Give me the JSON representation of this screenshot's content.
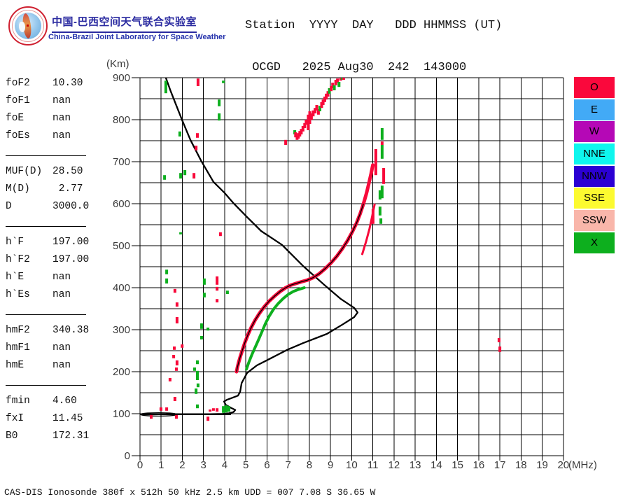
{
  "branding": {
    "title_zh": "中国-巴西空间天气联合实验室",
    "title_en": "China-Brazil Joint Laboratory for Space Weather",
    "accent_color": "#2a2aa0",
    "logo": "china-brazil-space-weather-globe-logo"
  },
  "header": {
    "line1": "Station  YYYY  DAY   DDD HHMMSS (UT)",
    "line2": " OCGD   2025 Aug30  242  143000"
  },
  "parameters": {
    "groups": [
      {
        "rows": [
          {
            "label": "foF2",
            "value": "10.30"
          },
          {
            "label": "foF1",
            "value": "nan"
          },
          {
            "label": "foE",
            "value": "nan"
          },
          {
            "label": "foEs",
            "value": "nan"
          }
        ]
      },
      {
        "rows": [
          {
            "label": "MUF(D)",
            "value": "28.50"
          },
          {
            "label": "M(D)",
            "value": " 2.77"
          },
          {
            "label": "D",
            "value": "3000.0"
          }
        ]
      },
      {
        "rows": [
          {
            "label": "h`F",
            "value": "197.00"
          },
          {
            "label": "h`F2",
            "value": "197.00"
          },
          {
            "label": "h`E",
            "value": "nan"
          },
          {
            "label": "h`Es",
            "value": "nan"
          }
        ]
      },
      {
        "rows": [
          {
            "label": "hmF2",
            "value": "340.38"
          },
          {
            "label": "hmF1",
            "value": "nan"
          },
          {
            "label": "hmE",
            "value": "nan"
          }
        ]
      },
      {
        "rows": [
          {
            "label": "fmin",
            "value": "4.60"
          },
          {
            "label": "fxI",
            "value": "11.45"
          },
          {
            "label": "B0",
            "value": "172.31"
          }
        ]
      }
    ]
  },
  "legend": {
    "items": [
      {
        "label": "O",
        "color": "#fa083c"
      },
      {
        "label": "E",
        "color": "#42aaf6"
      },
      {
        "label": "W",
        "color": "#b508b6"
      },
      {
        "label": "NNE",
        "color": "#0ff6ee"
      },
      {
        "label": "NNW",
        "color": "#2b00d3"
      },
      {
        "label": "SSE",
        "color": "#fcfa30"
      },
      {
        "label": "SSW",
        "color": "#f9b6aa"
      },
      {
        "label": "X",
        "color": "#0daf1e"
      }
    ]
  },
  "footer": {
    "caption": "CAS-DIS Ionosonde 380f x 512h 50 kHz 2.5 km UDD = 007 7.08 S 36.65 W"
  },
  "chart_data": {
    "type": "scatter",
    "title": "Ionogram",
    "xlabel": "(MHz)",
    "ylabel": "(Km)",
    "xlim": [
      0,
      20
    ],
    "ylim": [
      0,
      900
    ],
    "x_tick_step": 1,
    "y_label_step": 100,
    "y_grid_step": 50,
    "grid": true,
    "legend_position": "right",
    "colors": {
      "o_mode": "#f8093a",
      "x_mode": "#0daf1e",
      "profile": "#000000",
      "grid": "#000000",
      "tick_text": "#3a3a3a"
    },
    "o_trace": [
      [
        4.56,
        200
      ],
      [
        4.6,
        210
      ],
      [
        4.66,
        222
      ],
      [
        4.74,
        236
      ],
      [
        4.84,
        252
      ],
      [
        4.96,
        270
      ],
      [
        5.1,
        288
      ],
      [
        5.26,
        306
      ],
      [
        5.44,
        323
      ],
      [
        5.64,
        339
      ],
      [
        5.86,
        354
      ],
      [
        6.1,
        368
      ],
      [
        6.36,
        380
      ],
      [
        6.62,
        391
      ],
      [
        6.88,
        400
      ],
      [
        7.12,
        406
      ],
      [
        7.36,
        410
      ],
      [
        7.62,
        414
      ],
      [
        7.9,
        418
      ],
      [
        8.18,
        424
      ],
      [
        8.46,
        433
      ],
      [
        8.74,
        445
      ],
      [
        9.02,
        459
      ],
      [
        9.3,
        475
      ],
      [
        9.56,
        493
      ],
      [
        9.8,
        512
      ],
      [
        10.02,
        532
      ],
      [
        10.22,
        553
      ],
      [
        10.4,
        576
      ],
      [
        10.56,
        600
      ],
      [
        10.7,
        625
      ],
      [
        10.82,
        650
      ],
      [
        10.92,
        672
      ],
      [
        11.0,
        692
      ]
    ],
    "x_trace": [
      [
        5.03,
        206
      ],
      [
        5.14,
        222
      ],
      [
        5.28,
        240
      ],
      [
        5.44,
        258
      ],
      [
        5.6,
        276
      ],
      [
        5.76,
        295
      ],
      [
        5.92,
        314
      ],
      [
        6.1,
        332
      ],
      [
        6.3,
        348
      ],
      [
        6.52,
        362
      ],
      [
        6.76,
        374
      ],
      [
        7.0,
        384
      ],
      [
        7.24,
        391
      ],
      [
        7.5,
        396
      ],
      [
        7.76,
        400
      ]
    ],
    "o_branch2": [
      [
        10.5,
        480
      ],
      [
        10.68,
        510
      ],
      [
        10.84,
        540
      ],
      [
        10.97,
        570
      ],
      [
        11.08,
        598
      ]
    ],
    "profile": [
      [
        1.22,
        900
      ],
      [
        1.45,
        868
      ],
      [
        1.7,
        836
      ],
      [
        1.98,
        800
      ],
      [
        2.38,
        752
      ],
      [
        2.89,
        702
      ],
      [
        3.47,
        652
      ],
      [
        3.97,
        627
      ],
      [
        4.4,
        602
      ],
      [
        5.06,
        568
      ],
      [
        5.72,
        535
      ],
      [
        6.71,
        502
      ],
      [
        7.7,
        452
      ],
      [
        8.7,
        407
      ],
      [
        9.49,
        373
      ],
      [
        10.12,
        352
      ],
      [
        10.28,
        341
      ],
      [
        10.12,
        330
      ],
      [
        9.59,
        313
      ],
      [
        8.83,
        290
      ],
      [
        7.7,
        268
      ],
      [
        6.95,
        252
      ],
      [
        6.18,
        232
      ],
      [
        5.52,
        215
      ],
      [
        5.06,
        197
      ],
      [
        4.8,
        173
      ],
      [
        4.73,
        152
      ],
      [
        4.63,
        143
      ],
      [
        4.37,
        138
      ],
      [
        4.1,
        133
      ],
      [
        3.97,
        129
      ],
      [
        4.05,
        121
      ],
      [
        4.3,
        114
      ],
      [
        4.5,
        109
      ],
      [
        4.42,
        104
      ],
      [
        4.2,
        101
      ],
      [
        3.9,
        99.5
      ],
      [
        3.3,
        99
      ],
      [
        2.5,
        98.7
      ],
      [
        1.5,
        98.5
      ],
      [
        0.5,
        98.4
      ],
      [
        0.05,
        98.3
      ]
    ],
    "profile_baseline": {
      "km": 98.3,
      "f_start": 0.0,
      "f_end": 1.75,
      "lens": true
    },
    "scatter_segments": [
      [
        1.22,
        863,
        893,
        "x"
      ],
      [
        2.74,
        880,
        898,
        "o"
      ],
      [
        3.94,
        887,
        893,
        "x"
      ],
      [
        3.74,
        832,
        848,
        "x"
      ],
      [
        3.74,
        798,
        815,
        "x"
      ],
      [
        1.88,
        760,
        772,
        "x"
      ],
      [
        2.71,
        757,
        768,
        "o"
      ],
      [
        2.65,
        727,
        738,
        "o"
      ],
      [
        6.88,
        740,
        752,
        "o"
      ],
      [
        1.16,
        657,
        668,
        "x"
      ],
      [
        1.92,
        660,
        673,
        "x"
      ],
      [
        2.12,
        668,
        680,
        "x"
      ],
      [
        2.55,
        660,
        673,
        "o"
      ],
      [
        1.92,
        527,
        532,
        "x"
      ],
      [
        3.8,
        523,
        532,
        "o"
      ],
      [
        1.26,
        432,
        443,
        "x"
      ],
      [
        1.26,
        410,
        422,
        "x"
      ],
      [
        1.65,
        388,
        397,
        "o"
      ],
      [
        3.04,
        407,
        422,
        "x"
      ],
      [
        3.04,
        377,
        388,
        "x"
      ],
      [
        3.64,
        407,
        427,
        "o"
      ],
      [
        3.64,
        393,
        402,
        "o"
      ],
      [
        3.64,
        365,
        373,
        "o"
      ],
      [
        4.13,
        385,
        393,
        "x"
      ],
      [
        1.75,
        355,
        365,
        "o"
      ],
      [
        1.75,
        315,
        330,
        "o"
      ],
      [
        2.91,
        302,
        315,
        "x"
      ],
      [
        3.21,
        298,
        305,
        "x"
      ],
      [
        2.91,
        277,
        285,
        "x"
      ],
      [
        1.62,
        252,
        260,
        "o"
      ],
      [
        1.99,
        257,
        265,
        "o"
      ],
      [
        1.59,
        232,
        240,
        "o"
      ],
      [
        1.75,
        215,
        227,
        "o"
      ],
      [
        1.72,
        202,
        210,
        "o"
      ],
      [
        2.71,
        218,
        227,
        "x"
      ],
      [
        2.71,
        180,
        202,
        "x"
      ],
      [
        2.58,
        202,
        210,
        "x"
      ],
      [
        2.74,
        163,
        172,
        "x"
      ],
      [
        2.65,
        147,
        160,
        "x"
      ],
      [
        1.42,
        177,
        185,
        "o"
      ],
      [
        1.65,
        130,
        140,
        "o"
      ],
      [
        1.26,
        107,
        115,
        "o"
      ],
      [
        0.99,
        107,
        115,
        "o"
      ],
      [
        2.71,
        113,
        122,
        "x"
      ],
      [
        3.31,
        105,
        110,
        "o"
      ],
      [
        3.47,
        107,
        113,
        "o"
      ],
      [
        3.64,
        105,
        113,
        "o"
      ],
      [
        1.72,
        88,
        97,
        "o"
      ],
      [
        3.21,
        83,
        93,
        "o"
      ],
      [
        0.53,
        88,
        97,
        "o"
      ],
      [
        16.96,
        270,
        280,
        "o"
      ],
      [
        17.0,
        247,
        260,
        "o"
      ],
      [
        11.14,
        668,
        730,
        "o"
      ],
      [
        11.51,
        647,
        685,
        "o"
      ],
      [
        11.44,
        752,
        780,
        "x"
      ],
      [
        11.44,
        707,
        740,
        "x"
      ],
      [
        11.44,
        740,
        748,
        "o"
      ],
      [
        11.44,
        613,
        643,
        "x"
      ],
      [
        11.34,
        610,
        632,
        "x"
      ],
      [
        11.34,
        572,
        593,
        "x"
      ],
      [
        11.38,
        552,
        565,
        "x"
      ],
      [
        11.01,
        552,
        588,
        "o"
      ],
      [
        3.94,
        102,
        118,
        "x"
      ],
      [
        4.07,
        103,
        120,
        "x"
      ],
      [
        4.2,
        105,
        118,
        "x"
      ]
    ],
    "second_hop_segments": [
      [
        7.31,
        765,
        775,
        "x"
      ],
      [
        7.35,
        758,
        770,
        "o"
      ],
      [
        7.42,
        752,
        762,
        "o"
      ],
      [
        7.48,
        755,
        768,
        "o"
      ],
      [
        7.55,
        760,
        773,
        "o"
      ],
      [
        7.62,
        765,
        778,
        "o"
      ],
      [
        7.7,
        772,
        785,
        "o"
      ],
      [
        7.78,
        780,
        792,
        "o"
      ],
      [
        7.85,
        788,
        800,
        "o"
      ],
      [
        7.95,
        775,
        812,
        "o"
      ],
      [
        8.02,
        790,
        820,
        "o"
      ],
      [
        8.1,
        800,
        815,
        "o"
      ],
      [
        8.18,
        808,
        822,
        "o"
      ],
      [
        8.27,
        815,
        828,
        "o"
      ],
      [
        8.35,
        822,
        835,
        "o"
      ],
      [
        8.43,
        812,
        825,
        "o"
      ],
      [
        8.5,
        820,
        833,
        "x"
      ],
      [
        8.58,
        828,
        842,
        "o"
      ],
      [
        8.65,
        835,
        848,
        "o"
      ],
      [
        8.73,
        842,
        855,
        "o"
      ],
      [
        8.8,
        848,
        862,
        "o"
      ],
      [
        8.88,
        855,
        868,
        "o"
      ],
      [
        8.95,
        862,
        875,
        "x"
      ],
      [
        9.03,
        868,
        880,
        "o"
      ],
      [
        9.1,
        875,
        888,
        "o"
      ],
      [
        9.18,
        870,
        882,
        "x"
      ],
      [
        9.25,
        882,
        895,
        "o"
      ],
      [
        9.33,
        888,
        898,
        "o"
      ],
      [
        9.4,
        878,
        890,
        "x"
      ],
      [
        9.48,
        893,
        900,
        "o"
      ],
      [
        9.55,
        896,
        900,
        "x"
      ],
      [
        9.62,
        897,
        900,
        "o"
      ]
    ]
  }
}
